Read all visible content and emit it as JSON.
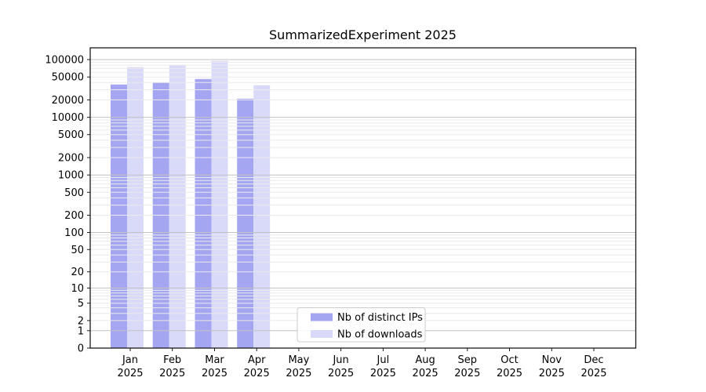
{
  "window": {
    "background": "#ffffff"
  },
  "chart_data": {
    "type": "bar",
    "title": "SummarizedExperiment 2025",
    "x_axis": {
      "categories": [
        "Jan",
        "Feb",
        "Mar",
        "Apr",
        "May",
        "Jun",
        "Jul",
        "Aug",
        "Sep",
        "Oct",
        "Nov",
        "Dec"
      ],
      "year_label": "2025"
    },
    "y_axis": {
      "scale": "log10(value+1)",
      "tick_values": [
        0,
        1,
        2,
        5,
        10,
        20,
        50,
        100,
        200,
        500,
        1000,
        2000,
        5000,
        10000,
        20000,
        50000,
        100000
      ],
      "range": [
        0,
        155000
      ],
      "grid": "horizontal major and minor"
    },
    "series": [
      {
        "name": "Nb of distinct IPs",
        "color": "#a5a6f1",
        "values": [
          37000,
          40000,
          46000,
          21000,
          0,
          0,
          0,
          0,
          0,
          0,
          0,
          0
        ]
      },
      {
        "name": "Nb of downloads",
        "color": "#d9daf9",
        "values": [
          74000,
          81000,
          95000,
          36000,
          0,
          0,
          0,
          0,
          0,
          0,
          0,
          0
        ]
      }
    ],
    "legend": {
      "position": "inside-bottom-center",
      "entries": [
        "Nb of distinct IPs",
        "Nb of downloads"
      ]
    },
    "colors": {
      "spine": "#1a1a1a",
      "grid_major": "#c2c2c2",
      "grid_minor": "#eaeaea",
      "legend_border": "#cccccc",
      "text": "#000000"
    }
  }
}
